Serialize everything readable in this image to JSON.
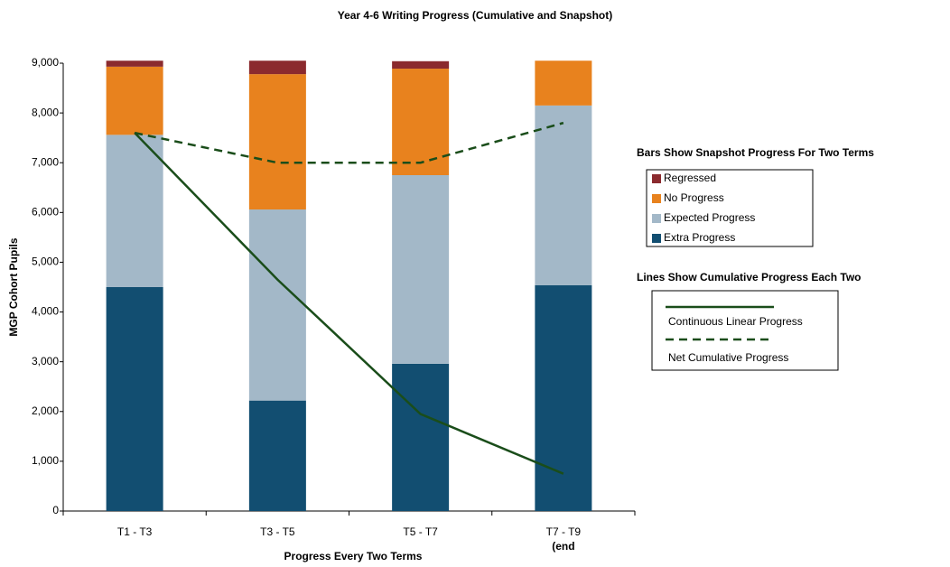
{
  "chart_data": {
    "type": "bar",
    "stacked": true,
    "title": "Year 4-6 Writing Progress (Cumulative and Snapshot)",
    "x_label": "Progress Every Two Terms",
    "y_label": "MGP Cohort Pupils",
    "categories": [
      "T1 - T3",
      "T3 - T5",
      "T5 - T7",
      "T7 - T9\n(end"
    ],
    "ylim": [
      0,
      9000
    ],
    "yticks": [
      0,
      {
        "value": 1000,
        "label": "1,000"
      },
      {
        "value": 2000,
        "label": "2,000"
      },
      {
        "value": 3000,
        "label": "3,000"
      },
      {
        "value": 4000,
        "label": "4,000"
      },
      {
        "value": 5000,
        "label": "5,000"
      },
      {
        "value": 6000,
        "label": "6,000"
      },
      {
        "value": 7000,
        "label": "7,000"
      },
      {
        "value": 8000,
        "label": "8,000"
      },
      {
        "value": 9000,
        "label": "9,000"
      }
    ],
    "legend_titles": [
      "Bars Show Snapshot Progress For Two Terms",
      "Lines Show Cumulative Progress Each Two"
    ],
    "series": [
      {
        "name": "Extra Progress",
        "kind": "bar",
        "color": "#124e71",
        "values": [
          4500,
          2220,
          2960,
          4540
        ]
      },
      {
        "name": "Expected Progress",
        "kind": "bar",
        "color": "#a3b8c8",
        "values": [
          3060,
          3840,
          3790,
          3610
        ]
      },
      {
        "name": "No Progress",
        "kind": "bar",
        "color": "#e8821e",
        "values": [
          1370,
          2720,
          2140,
          900
        ]
      },
      {
        "name": "Regressed",
        "kind": "bar",
        "color": "#8b2a2e",
        "values": [
          120,
          270,
          150,
          0
        ]
      },
      {
        "name": "Continuous Linear Progress",
        "kind": "line",
        "dashed": false,
        "color": "#1a4d1a",
        "values": [
          7600,
          4650,
          1950,
          750
        ]
      },
      {
        "name": "Net Cumulative Progress",
        "kind": "line",
        "dashed": true,
        "color": "#1a4d1a",
        "values": [
          7600,
          7000,
          7000,
          7800
        ]
      }
    ]
  }
}
